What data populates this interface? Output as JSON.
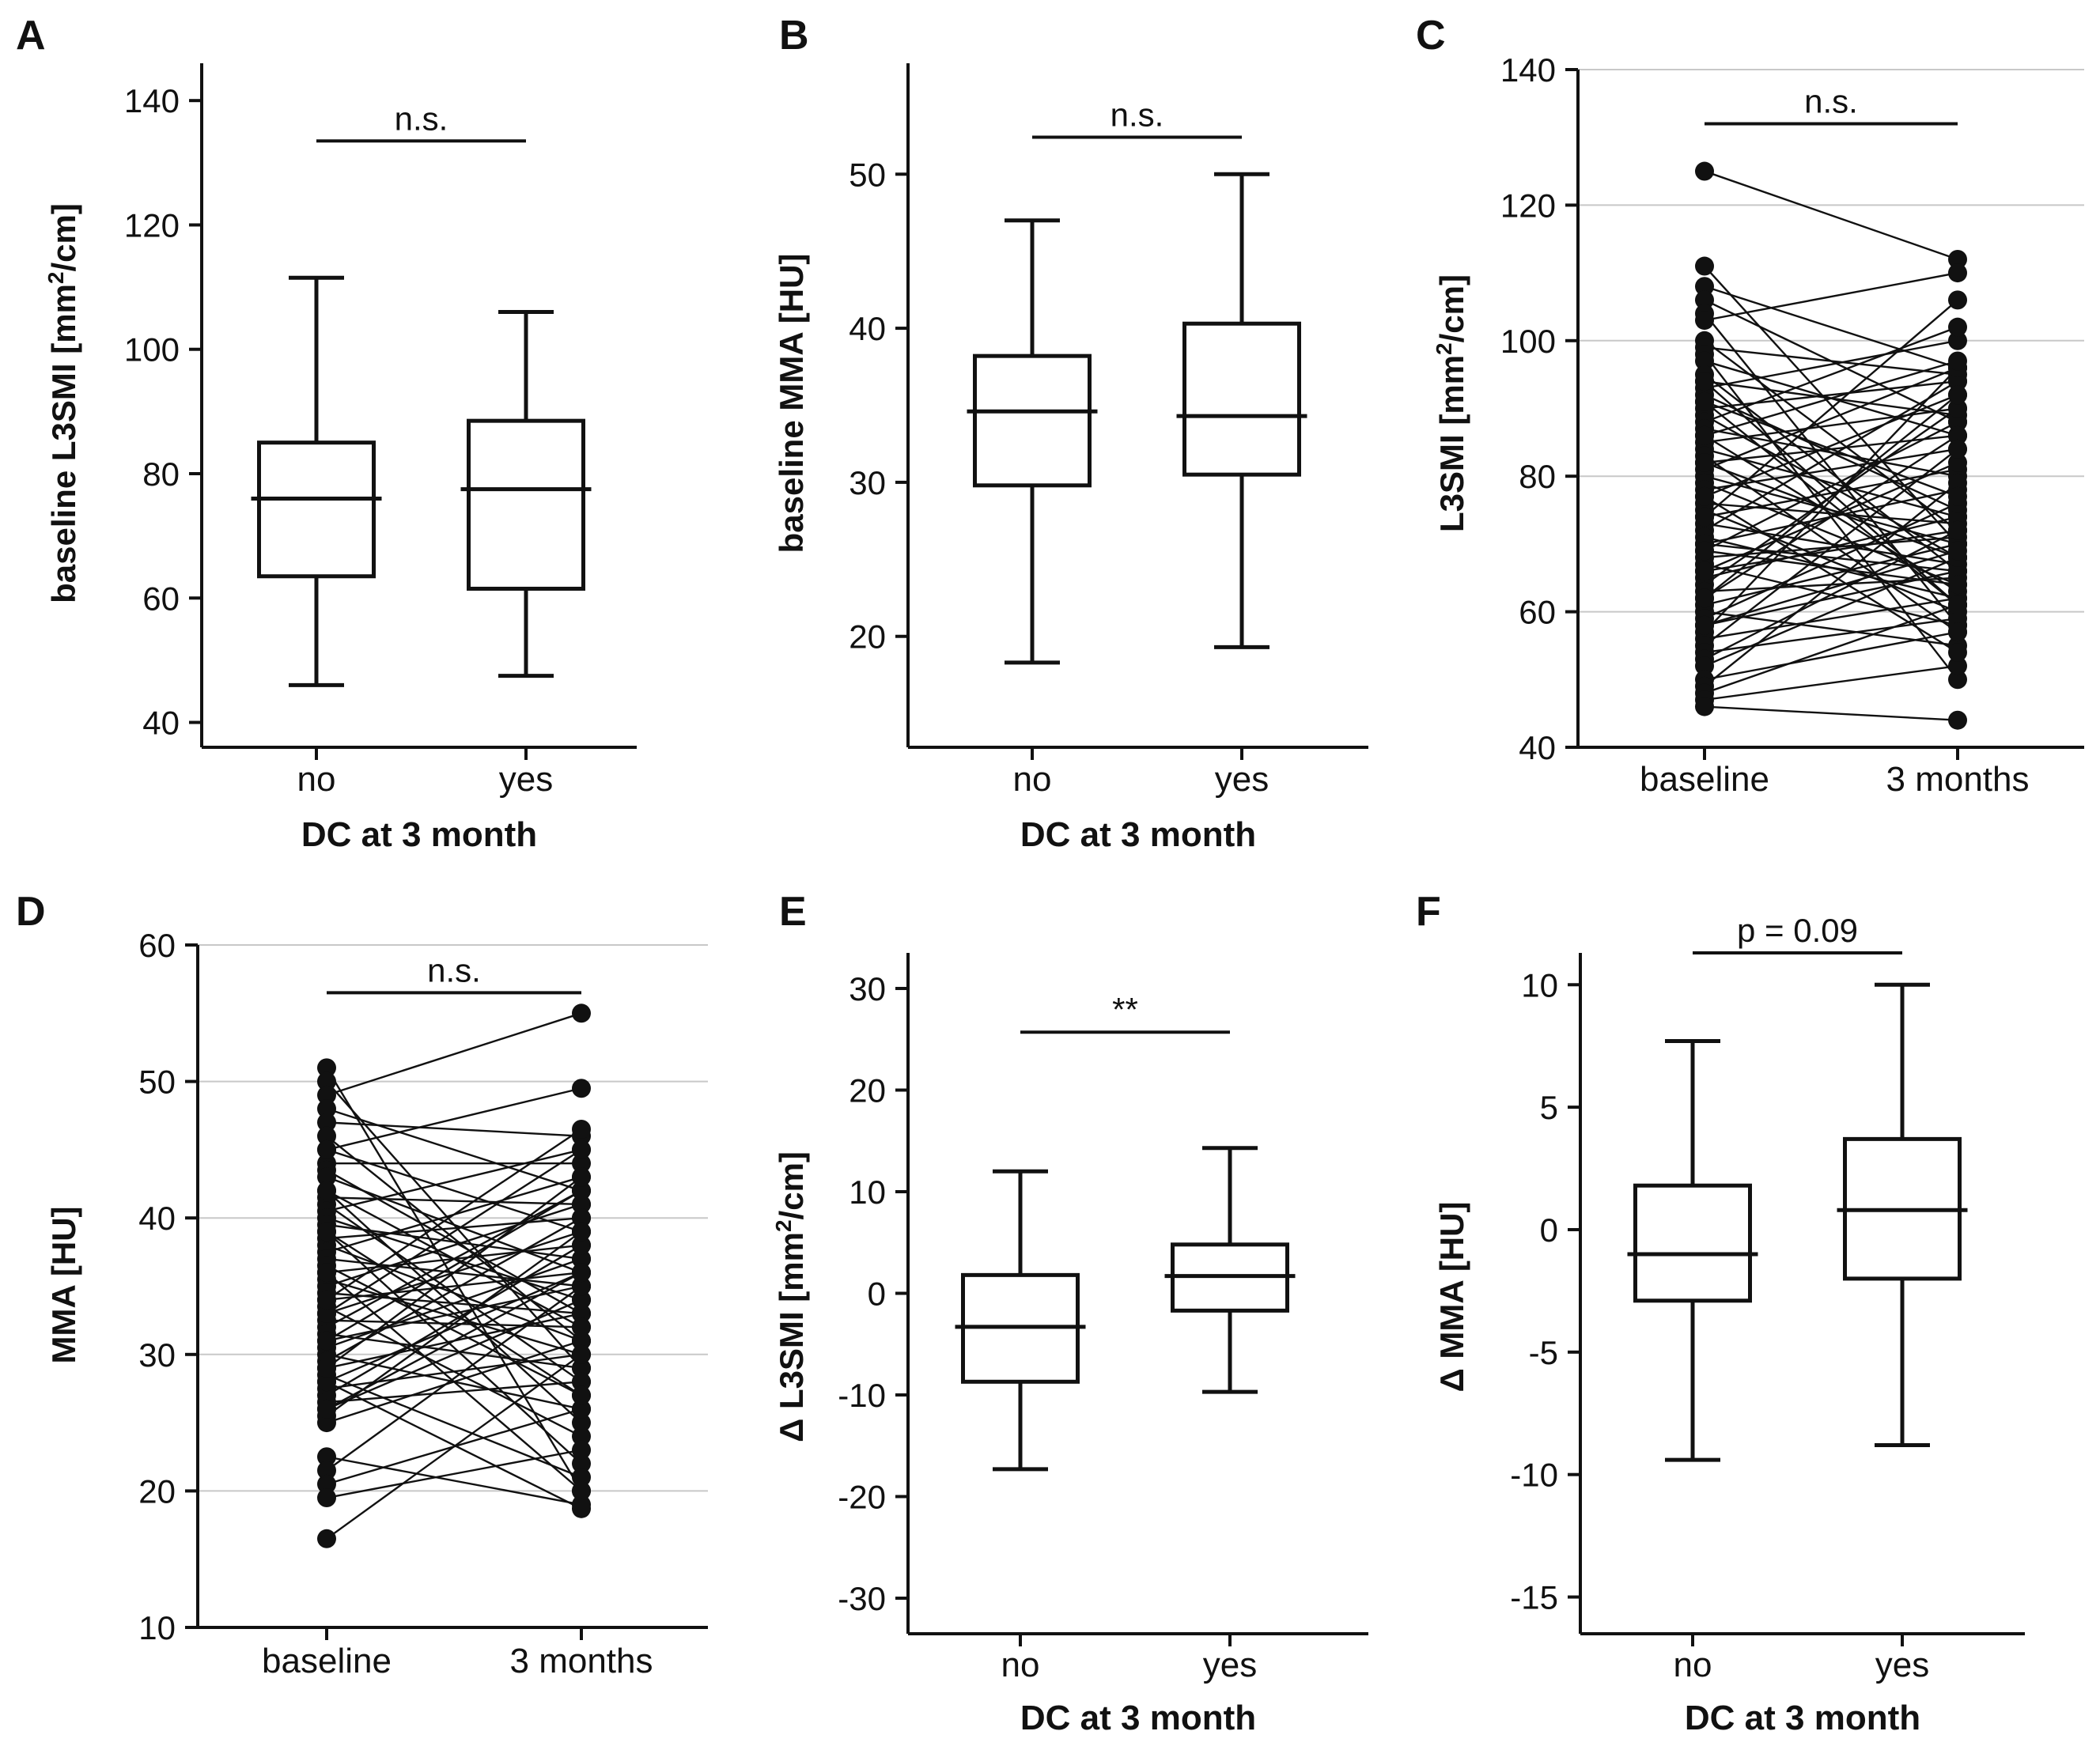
{
  "chart_data": [
    {
      "panel": "A",
      "type": "box",
      "xlabel": "DC at 3 month",
      "ylabel": "baseline L3SMI [mm²/cm]",
      "ylabel_parts": [
        "baseline L3SMI [mm",
        "2",
        "/cm]"
      ],
      "categories": [
        "no",
        "yes"
      ],
      "ylim": [
        36,
        146
      ],
      "yticks": [
        40,
        60,
        80,
        100,
        120,
        140
      ],
      "grid": false,
      "boxes": [
        {
          "min": 46,
          "q1": 63.5,
          "median": 76,
          "q3": 85,
          "max": 111.5
        },
        {
          "min": 47.5,
          "q1": 61.5,
          "median": 77.5,
          "q3": 88.5,
          "max": 106
        }
      ],
      "significance": "n.s.",
      "significance_y": 133.5
    },
    {
      "panel": "B",
      "type": "box",
      "xlabel": "DC at 3 month",
      "ylabel": "baseline MMA [HU]",
      "ylabel_parts": [
        "baseline MMA [HU]",
        "",
        ""
      ],
      "categories": [
        "no",
        "yes"
      ],
      "ylim": [
        12.8,
        57.2
      ],
      "yticks": [
        20,
        30,
        40,
        50
      ],
      "grid": false,
      "boxes": [
        {
          "min": 18.3,
          "q1": 29.8,
          "median": 34.6,
          "q3": 38.2,
          "max": 47
        },
        {
          "min": 19.3,
          "q1": 30.5,
          "median": 34.3,
          "q3": 40.3,
          "max": 50
        }
      ],
      "significance": "n.s.",
      "significance_y": 52.4
    },
    {
      "panel": "C",
      "type": "paired-line",
      "xlabel": "",
      "ylabel": "L3SMI [mm²/cm]",
      "ylabel_parts": [
        "L3SMI [mm",
        "2",
        "/cm]"
      ],
      "categories": [
        "baseline",
        "3 months"
      ],
      "ylim": [
        40,
        140
      ],
      "yticks": [
        40,
        60,
        80,
        100,
        120,
        140
      ],
      "grid": true,
      "pairs": [
        [
          125,
          112
        ],
        [
          111,
          70
        ],
        [
          108,
          96
        ],
        [
          106,
          88
        ],
        [
          104,
          58
        ],
        [
          103,
          110
        ],
        [
          100,
          72
        ],
        [
          99,
          95
        ],
        [
          98,
          50
        ],
        [
          97,
          86
        ],
        [
          95,
          66
        ],
        [
          94,
          89
        ],
        [
          93,
          100
        ],
        [
          92,
          75
        ],
        [
          91,
          61
        ],
        [
          90,
          94
        ],
        [
          89,
          68
        ],
        [
          88,
          102
        ],
        [
          87,
          80
        ],
        [
          86,
          63
        ],
        [
          85,
          90
        ],
        [
          84,
          74
        ],
        [
          83,
          57
        ],
        [
          82,
          86
        ],
        [
          81,
          96
        ],
        [
          80,
          70
        ],
        [
          79,
          64
        ],
        [
          78,
          84
        ],
        [
          77,
          92
        ],
        [
          76,
          73
        ],
        [
          75,
          60
        ],
        [
          74,
          81
        ],
        [
          73,
          67
        ],
        [
          72,
          94
        ],
        [
          71,
          62
        ],
        [
          70,
          78
        ],
        [
          69,
          88
        ],
        [
          68,
          71
        ],
        [
          67,
          58
        ],
        [
          66,
          82
        ],
        [
          65,
          74
        ],
        [
          64,
          90
        ],
        [
          63,
          65
        ],
        [
          62,
          86
        ],
        [
          61,
          70
        ],
        [
          60,
          55
        ],
        [
          59,
          76
        ],
        [
          58,
          66
        ],
        [
          57,
          96
        ],
        [
          56,
          62
        ],
        [
          55,
          84
        ],
        [
          54,
          59
        ],
        [
          53,
          72
        ],
        [
          52,
          68
        ],
        [
          50,
          57
        ],
        [
          49,
          79
        ],
        [
          48,
          61
        ],
        [
          47,
          52
        ],
        [
          46,
          44
        ],
        [
          70,
          66
        ],
        [
          74,
          106
        ],
        [
          66,
          72
        ],
        [
          82,
          68
        ],
        [
          58,
          69
        ],
        [
          77,
          54
        ],
        [
          94,
          61
        ],
        [
          62,
          92
        ],
        [
          86,
          97
        ],
        [
          69,
          64
        ],
        [
          91,
          77
        ]
      ],
      "significance": "n.s.",
      "significance_y": 132
    },
    {
      "panel": "D",
      "type": "paired-line",
      "xlabel": "",
      "ylabel": "MMA [HU]",
      "ylabel_parts": [
        "MMA [HU]",
        "",
        ""
      ],
      "categories": [
        "baseline",
        "3 months"
      ],
      "ylim": [
        10,
        60
      ],
      "yticks": [
        10,
        20,
        30,
        40,
        50,
        60
      ],
      "grid": true,
      "pairs": [
        [
          51,
          20
        ],
        [
          50,
          29
        ],
        [
          49,
          55
        ],
        [
          48,
          42
        ],
        [
          47,
          46
        ],
        [
          46,
          31
        ],
        [
          45,
          39
        ],
        [
          44,
          44
        ],
        [
          43.5,
          33
        ],
        [
          43,
          36
        ],
        [
          42,
          25
        ],
        [
          41.5,
          41
        ],
        [
          41,
          28
        ],
        [
          40.5,
          45
        ],
        [
          40,
          34
        ],
        [
          39.5,
          37
        ],
        [
          39,
          22
        ],
        [
          38.5,
          40
        ],
        [
          38,
          31
        ],
        [
          37.5,
          43
        ],
        [
          37,
          35
        ],
        [
          36.5,
          27
        ],
        [
          36,
          38
        ],
        [
          35.5,
          30
        ],
        [
          35,
          41
        ],
        [
          34.5,
          33
        ],
        [
          34,
          36
        ],
        [
          33.5,
          24
        ],
        [
          33,
          39
        ],
        [
          32.5,
          32
        ],
        [
          32,
          42
        ],
        [
          31.5,
          29
        ],
        [
          31,
          35
        ],
        [
          30.5,
          37
        ],
        [
          30,
          26
        ],
        [
          29.5,
          40
        ],
        [
          29,
          33
        ],
        [
          28.5,
          21
        ],
        [
          28,
          36
        ],
        [
          27.5,
          30
        ],
        [
          27,
          38
        ],
        [
          26.5,
          28
        ],
        [
          26,
          34
        ],
        [
          25.5,
          39
        ],
        [
          25,
          31
        ],
        [
          22.5,
          19
        ],
        [
          21.5,
          35
        ],
        [
          20.5,
          26
        ],
        [
          19.5,
          23
        ],
        [
          16.5,
          30
        ],
        [
          33,
          45
        ],
        [
          36,
          20
        ],
        [
          31,
          42
        ],
        [
          28,
          18.7
        ],
        [
          45,
          49.5
        ],
        [
          29,
          43
        ],
        [
          39,
          27
        ],
        [
          34,
          46.5
        ],
        [
          26,
          36
        ],
        [
          42,
          32
        ]
      ],
      "significance": "n.s.",
      "significance_y": 56.5
    },
    {
      "panel": "E",
      "type": "box",
      "xlabel": "DC at 3 month",
      "ylabel": "Δ L3SMI [mm²/cm]",
      "ylabel_parts": [
        "Δ L3SMI [mm",
        "2",
        "/cm]"
      ],
      "categories": [
        "no",
        "yes"
      ],
      "ylim": [
        -33.5,
        33.5
      ],
      "yticks": [
        -30,
        -20,
        -10,
        0,
        10,
        20,
        30
      ],
      "grid": false,
      "boxes": [
        {
          "min": -17.3,
          "q1": -8.7,
          "median": -3.3,
          "q3": 1.8,
          "max": 12
        },
        {
          "min": -9.7,
          "q1": -1.7,
          "median": 1.7,
          "q3": 4.8,
          "max": 14.3
        }
      ],
      "significance": "**",
      "significance_y": 25.7
    },
    {
      "panel": "F",
      "type": "box",
      "xlabel": "DC at 3 month",
      "ylabel": "Δ MMA [HU]",
      "ylabel_parts": [
        "Δ MMA [HU]",
        "",
        ""
      ],
      "categories": [
        "no",
        "yes"
      ],
      "ylim": [
        -16.5,
        11.3
      ],
      "yticks": [
        -15,
        -10,
        -5,
        0,
        5,
        10
      ],
      "ytick_labels": [
        "-15",
        "-10",
        "-5",
        "0",
        "5",
        "10"
      ],
      "grid": false,
      "boxes": [
        {
          "min": -9.4,
          "q1": -2.9,
          "median": -1,
          "q3": 1.8,
          "max": 7.7
        },
        {
          "min": -8.8,
          "q1": -2,
          "median": 0.8,
          "q3": 3.7,
          "max": 10
        }
      ],
      "significance": "p = 0.09",
      "significance_y": 11.3
    }
  ]
}
